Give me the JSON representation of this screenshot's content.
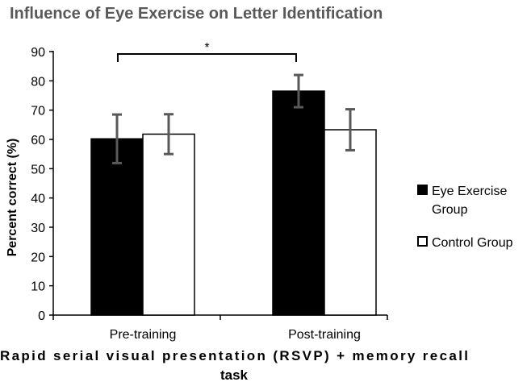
{
  "chart_data": {
    "type": "bar",
    "title": "Influence of Eye Exercise on Letter Identification",
    "xlabel_lines": [
      "Rapid serial visual presentation (RSVP) + memory recall",
      "task"
    ],
    "ylabel": "Percent correct (%)",
    "ylim": [
      0,
      90
    ],
    "yticks": [
      0,
      10,
      20,
      30,
      40,
      50,
      60,
      70,
      80,
      90
    ],
    "categories": [
      "Pre-training",
      "Post-training"
    ],
    "series": [
      {
        "name_lines": [
          "Eye Exercise",
          "Group"
        ],
        "color": "#000000",
        "values": [
          60.2,
          76.5
        ],
        "errors": [
          8.3,
          5.5
        ]
      },
      {
        "name_lines": [
          "Control Group"
        ],
        "color": "#ffffff",
        "values": [
          61.8,
          63.3
        ],
        "errors": [
          6.8,
          7.0
        ]
      }
    ],
    "significance": {
      "label": "*",
      "from": {
        "category": 0,
        "series": 0
      },
      "to": {
        "category": 1,
        "series": 0
      },
      "y": 90
    },
    "grid": false,
    "legend_position": "right",
    "error_bar_color": "#595959"
  }
}
